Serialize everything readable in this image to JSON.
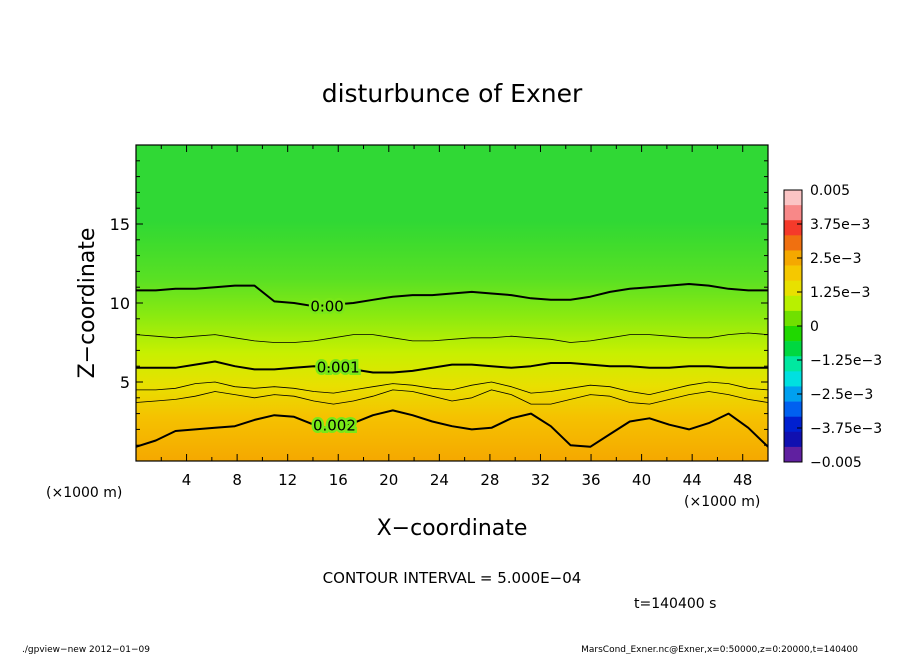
{
  "chart_data": {
    "type": "heatmap",
    "title": "disturbunce of Exner",
    "xlabel": "X−coordinate",
    "ylabel": "Z−coordinate",
    "x_unit_left": "(×1000 m)",
    "x_unit_right": "(×1000 m)",
    "xlim": [
      0,
      50
    ],
    "ylim": [
      0,
      20
    ],
    "x_ticks": [
      "4",
      "8",
      "12",
      "16",
      "20",
      "24",
      "28",
      "32",
      "36",
      "40",
      "44",
      "48"
    ],
    "y_ticks": [
      "5",
      "10",
      "15"
    ],
    "contour_interval_text": "CONTOUR INTERVAL = 5.000E−04",
    "time_text": "t=140400 s",
    "footer_left": "./gpview−new   2012−01−09",
    "footer_right": "MarsCond_Exner.nc@Exner,x=0:50000,z=0:20000,t=140400",
    "colorbar": {
      "labels": [
        "0.005",
        "3.75e−3",
        "2.5e−3",
        "1.25e−3",
        "0",
        "−1.25e−3",
        "−2.5e−3",
        "−3.75e−3",
        "−0.005"
      ],
      "colors": [
        "#fbc4c4",
        "#f88888",
        "#f53a2a",
        "#f07010",
        "#f5a800",
        "#f5c800",
        "#e8e000",
        "#b8f000",
        "#70e000",
        "#20d800",
        "#00d840",
        "#00e8a0",
        "#00e0e0",
        "#00a0f0",
        "#0060f0",
        "#0020d0",
        "#1010b0",
        "#6020a0"
      ]
    },
    "contours": [
      {
        "label": "0.00",
        "style": "thick",
        "z": [
          10.8,
          10.8,
          10.9,
          10.9,
          11.0,
          11.1,
          11.1,
          10.1,
          10.0,
          9.8,
          9.9,
          10.0,
          10.2,
          10.4,
          10.5,
          10.5,
          10.6,
          10.7,
          10.6,
          10.5,
          10.3,
          10.2,
          10.2,
          10.4,
          10.7,
          10.9,
          11.0,
          11.1,
          11.2,
          11.1,
          10.9,
          10.8,
          10.8
        ]
      },
      {
        "label": "",
        "style": "thin",
        "z": [
          8.0,
          7.9,
          7.8,
          7.9,
          8.0,
          7.8,
          7.6,
          7.5,
          7.5,
          7.6,
          7.8,
          8.0,
          8.0,
          7.8,
          7.6,
          7.6,
          7.7,
          7.8,
          7.8,
          7.9,
          7.8,
          7.7,
          7.5,
          7.6,
          7.8,
          8.0,
          8.0,
          7.9,
          7.8,
          7.8,
          8.0,
          8.1,
          8.0
        ]
      },
      {
        "label": "0.001",
        "style": "thick",
        "z": [
          5.9,
          5.9,
          5.9,
          6.1,
          6.3,
          6.0,
          5.8,
          5.8,
          5.9,
          6.0,
          5.9,
          5.8,
          5.6,
          5.6,
          5.7,
          5.9,
          6.1,
          6.1,
          6.0,
          5.9,
          6.0,
          6.2,
          6.2,
          6.1,
          6.0,
          6.0,
          5.9,
          5.9,
          6.0,
          6.0,
          5.9,
          5.9,
          5.9
        ]
      },
      {
        "label": "",
        "style": "thin",
        "z": [
          4.5,
          4.5,
          4.6,
          4.9,
          5.0,
          4.7,
          4.6,
          4.7,
          4.6,
          4.4,
          4.3,
          4.5,
          4.7,
          4.9,
          4.8,
          4.6,
          4.5,
          4.8,
          5.0,
          4.7,
          4.3,
          4.4,
          4.6,
          4.8,
          4.7,
          4.4,
          4.2,
          4.5,
          4.8,
          5.0,
          4.9,
          4.6,
          4.5
        ]
      },
      {
        "label": "",
        "style": "thin",
        "z": [
          3.7,
          3.8,
          3.9,
          4.1,
          4.4,
          4.2,
          4.0,
          4.2,
          4.1,
          3.8,
          3.6,
          3.8,
          4.1,
          4.5,
          4.4,
          4.1,
          3.8,
          4.0,
          4.5,
          4.2,
          3.6,
          3.6,
          3.9,
          4.2,
          4.1,
          3.7,
          3.6,
          3.9,
          4.2,
          4.4,
          4.2,
          3.9,
          3.7
        ]
      },
      {
        "label": "0.002",
        "style": "thick",
        "z": [
          0.9,
          1.3,
          1.9,
          2.0,
          2.1,
          2.2,
          2.6,
          2.9,
          2.8,
          2.3,
          2.0,
          2.4,
          2.9,
          3.2,
          2.9,
          2.5,
          2.2,
          2.0,
          2.1,
          2.7,
          3.0,
          2.2,
          1.0,
          0.9,
          1.7,
          2.5,
          2.7,
          2.3,
          2.0,
          2.4,
          3.0,
          2.1,
          0.9
        ]
      }
    ]
  }
}
